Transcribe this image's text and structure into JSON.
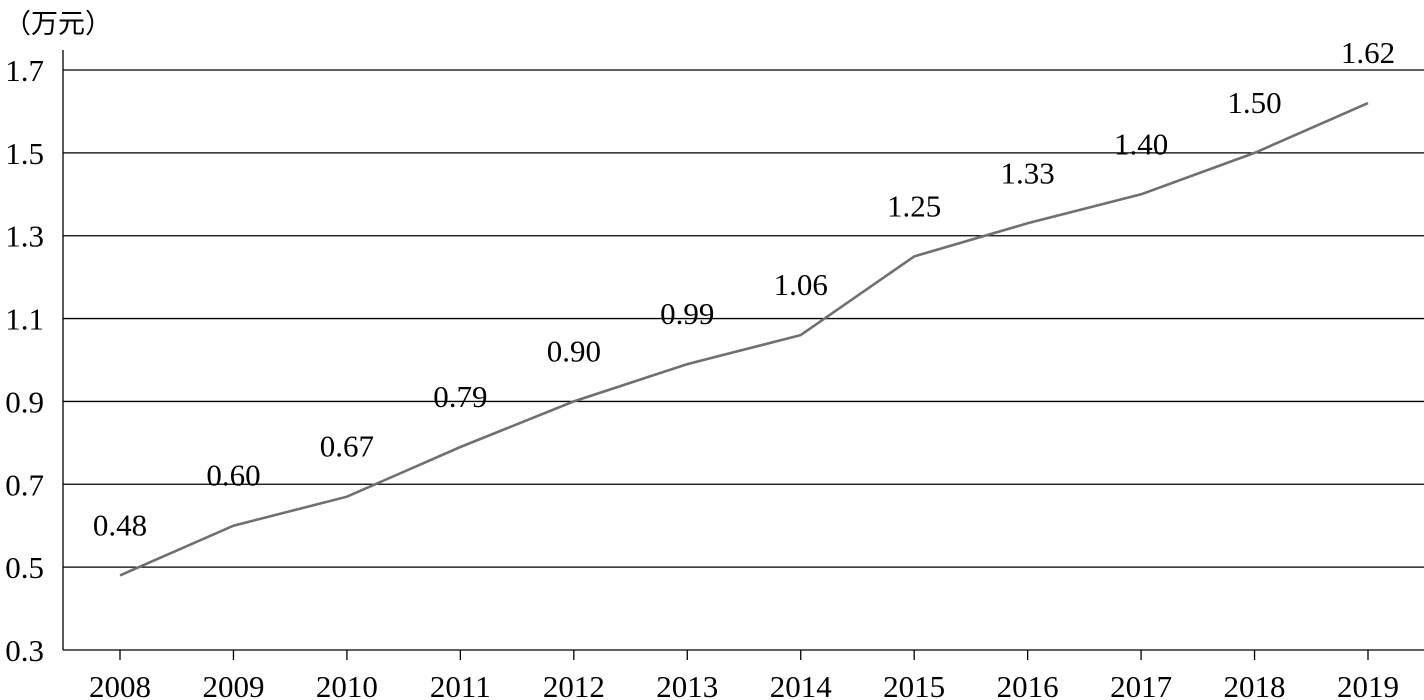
{
  "chart_data": {
    "type": "line",
    "unit_label": "（万元）",
    "categories": [
      "2008",
      "2009",
      "2010",
      "2011",
      "2012",
      "2013",
      "2014",
      "2015",
      "2016",
      "2017",
      "2018",
      "2019"
    ],
    "values": [
      0.48,
      0.6,
      0.67,
      0.79,
      0.9,
      0.99,
      1.06,
      1.25,
      1.33,
      1.4,
      1.5,
      1.62
    ],
    "value_labels": [
      "0.48",
      "0.60",
      "0.67",
      "0.79",
      "0.90",
      "0.99",
      "1.06",
      "1.25",
      "1.33",
      "1.40",
      "1.50",
      "1.62"
    ],
    "y_ticks": [
      "0.3",
      "0.5",
      "0.7",
      "0.9",
      "1.1",
      "1.3",
      "1.5",
      "1.7"
    ],
    "ylim": [
      0.3,
      1.7
    ],
    "grid": true,
    "legend": "none",
    "colors": {
      "line": "#707070",
      "grid": "#000000"
    }
  }
}
